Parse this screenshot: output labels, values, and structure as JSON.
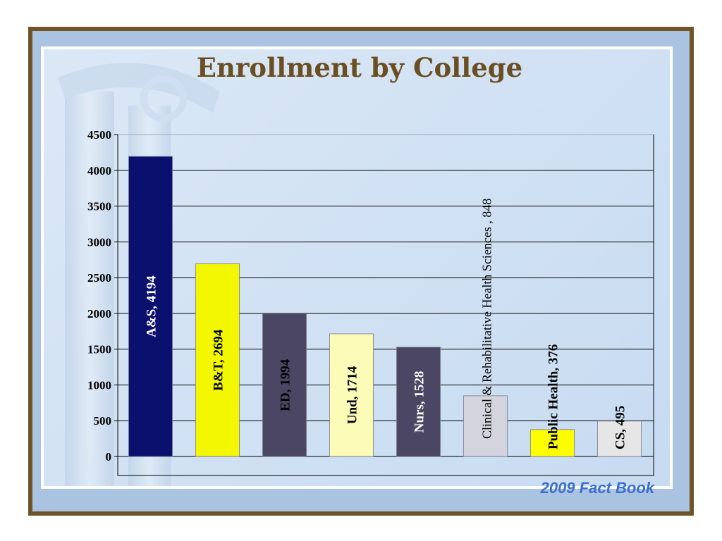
{
  "title": "Enrollment by College",
  "footer": "2009 Fact Book",
  "chart_data": {
    "type": "bar",
    "title": "Enrollment by College",
    "xlabel": "",
    "ylabel": "",
    "ylim": [
      0,
      4500
    ],
    "yticks": [
      0,
      500,
      1000,
      1500,
      2000,
      2500,
      3000,
      3500,
      4000,
      4500
    ],
    "grid": true,
    "legend": "none",
    "categories": [
      "A&S",
      "B&T",
      "ED",
      "Und",
      "Nurs",
      "Clinical & Rehabilitative Health Sciences ",
      "Public Health",
      "CS"
    ],
    "values": [
      4194,
      2694,
      1994,
      1714,
      1528,
      848,
      376,
      495
    ],
    "data_labels": [
      "A&S, 4194",
      "B&T, 2694",
      "ED, 1994",
      "Und, 1714",
      "Nurs, 1528",
      "Clinical & Rehabilitative Health Sciences , 848",
      "Public Health, 376",
      "CS, 495"
    ],
    "colors": [
      "#0b0f6e",
      "#f3f700",
      "#4a4663",
      "#fdfbb8",
      "#4a4663",
      "#d4d4de",
      "#ffff00",
      "#e6e6e6"
    ],
    "label_colors": [
      "#ffffff",
      "#000000",
      "#000000",
      "#000000",
      "#ffffff",
      "#000000",
      "#000000",
      "#000000"
    ]
  }
}
